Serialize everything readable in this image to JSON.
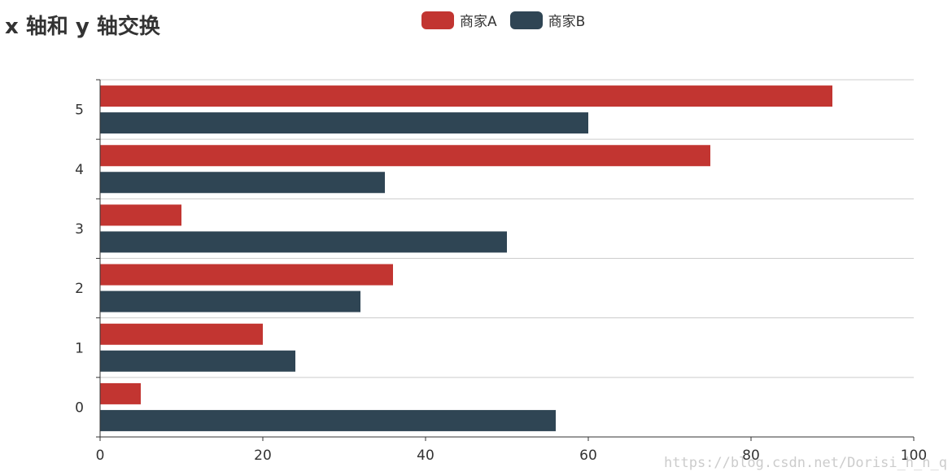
{
  "chart_data": {
    "type": "bar",
    "orientation": "horizontal",
    "title": "x 轴和 y 轴交换",
    "categories": [
      "0",
      "1",
      "2",
      "3",
      "4",
      "5"
    ],
    "series": [
      {
        "name": "商家A",
        "color": "#c23531",
        "values": [
          5,
          20,
          36,
          10,
          75,
          90
        ]
      },
      {
        "name": "商家B",
        "color": "#2f4554",
        "values": [
          56,
          24,
          32,
          50,
          35,
          60
        ]
      }
    ],
    "xlim": [
      0,
      100
    ],
    "xticks": [
      0,
      20,
      40,
      60,
      80,
      100
    ],
    "grid": true,
    "legend_position": "top-center"
  },
  "watermark": "https://blog.csdn.net/Dorisi_h_n_q"
}
